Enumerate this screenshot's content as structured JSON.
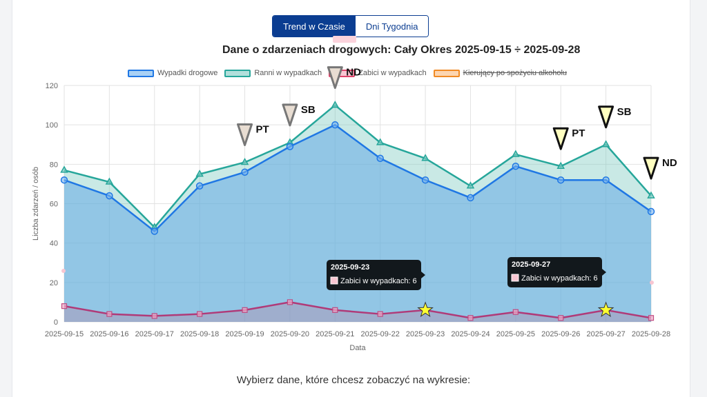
{
  "toggle": {
    "trend_label": "Trend w Czasie",
    "days_label": "Dni Tygodnia"
  },
  "title": "Dane o zdarzeniach drogowych: Cały Okres 2025-09-15 ÷ 2025-09-28",
  "bottom_prompt": "Wybierz dane, które chcesz zobaczyć na wykresie:",
  "legend": [
    {
      "label": "Wypadki drogowe",
      "color": "#1f77e4",
      "fill": "#a9d1f5",
      "hidden": false
    },
    {
      "label": "Ranni w wypadkach",
      "color": "#26a69a",
      "fill": "#b2dfdb",
      "hidden": false
    },
    {
      "label": "Zabici w wypadkach",
      "color": "#e0446b",
      "fill": "#f8c6d2",
      "hidden": false
    },
    {
      "label": "Kierujący po spożyciu alkoholu",
      "color": "#f08a24",
      "fill": "#fcd5b0",
      "hidden": true
    }
  ],
  "chart_data": {
    "type": "area",
    "ylabel": "Liczba zdarzeń / osób",
    "xlabel": "Data",
    "ylim": [
      0,
      120
    ],
    "yticks": [
      0,
      20,
      40,
      60,
      80,
      100,
      120
    ],
    "grid": true,
    "legend_position": "top",
    "categories": [
      "2025-09-15",
      "2025-09-16",
      "2025-09-17",
      "2025-09-18",
      "2025-09-19",
      "2025-09-20",
      "2025-09-21",
      "2025-09-22",
      "2025-09-23",
      "2025-09-24",
      "2025-09-25",
      "2025-09-26",
      "2025-09-27",
      "2025-09-28"
    ],
    "series": [
      {
        "name": "Wypadki drogowe",
        "values": [
          72,
          64,
          46,
          69,
          76,
          89,
          100,
          83,
          72,
          63,
          79,
          72,
          72,
          56
        ]
      },
      {
        "name": "Ranni w wypadkach",
        "values": [
          77,
          71,
          48,
          75,
          81,
          91,
          110,
          91,
          83,
          69,
          85,
          79,
          90,
          64
        ]
      },
      {
        "name": "Zabici w wypadkach",
        "values": [
          8,
          4,
          3,
          4,
          6,
          10,
          6,
          4,
          6,
          2,
          5,
          2,
          6,
          2
        ]
      }
    ],
    "day_annotations": [
      {
        "index": 4,
        "label": "PT",
        "color": "#e8ddd2"
      },
      {
        "index": 5,
        "label": "SB",
        "color": "#e8ddd2"
      },
      {
        "index": 6,
        "label": "ND",
        "color": "#e8ddd2"
      },
      {
        "index": 11,
        "label": "PT",
        "color": "#ffffc0"
      },
      {
        "index": 12,
        "label": "SB",
        "color": "#ffffc0"
      },
      {
        "index": 13,
        "label": "ND",
        "color": "#ffffc0"
      }
    ],
    "highlights": [
      {
        "index": 8,
        "date": "2025-09-23",
        "text": "Zabici w wypadkach: 6"
      },
      {
        "index": 12,
        "date": "2025-09-27",
        "text": "Zabici w wypadkach: 6"
      }
    ]
  }
}
